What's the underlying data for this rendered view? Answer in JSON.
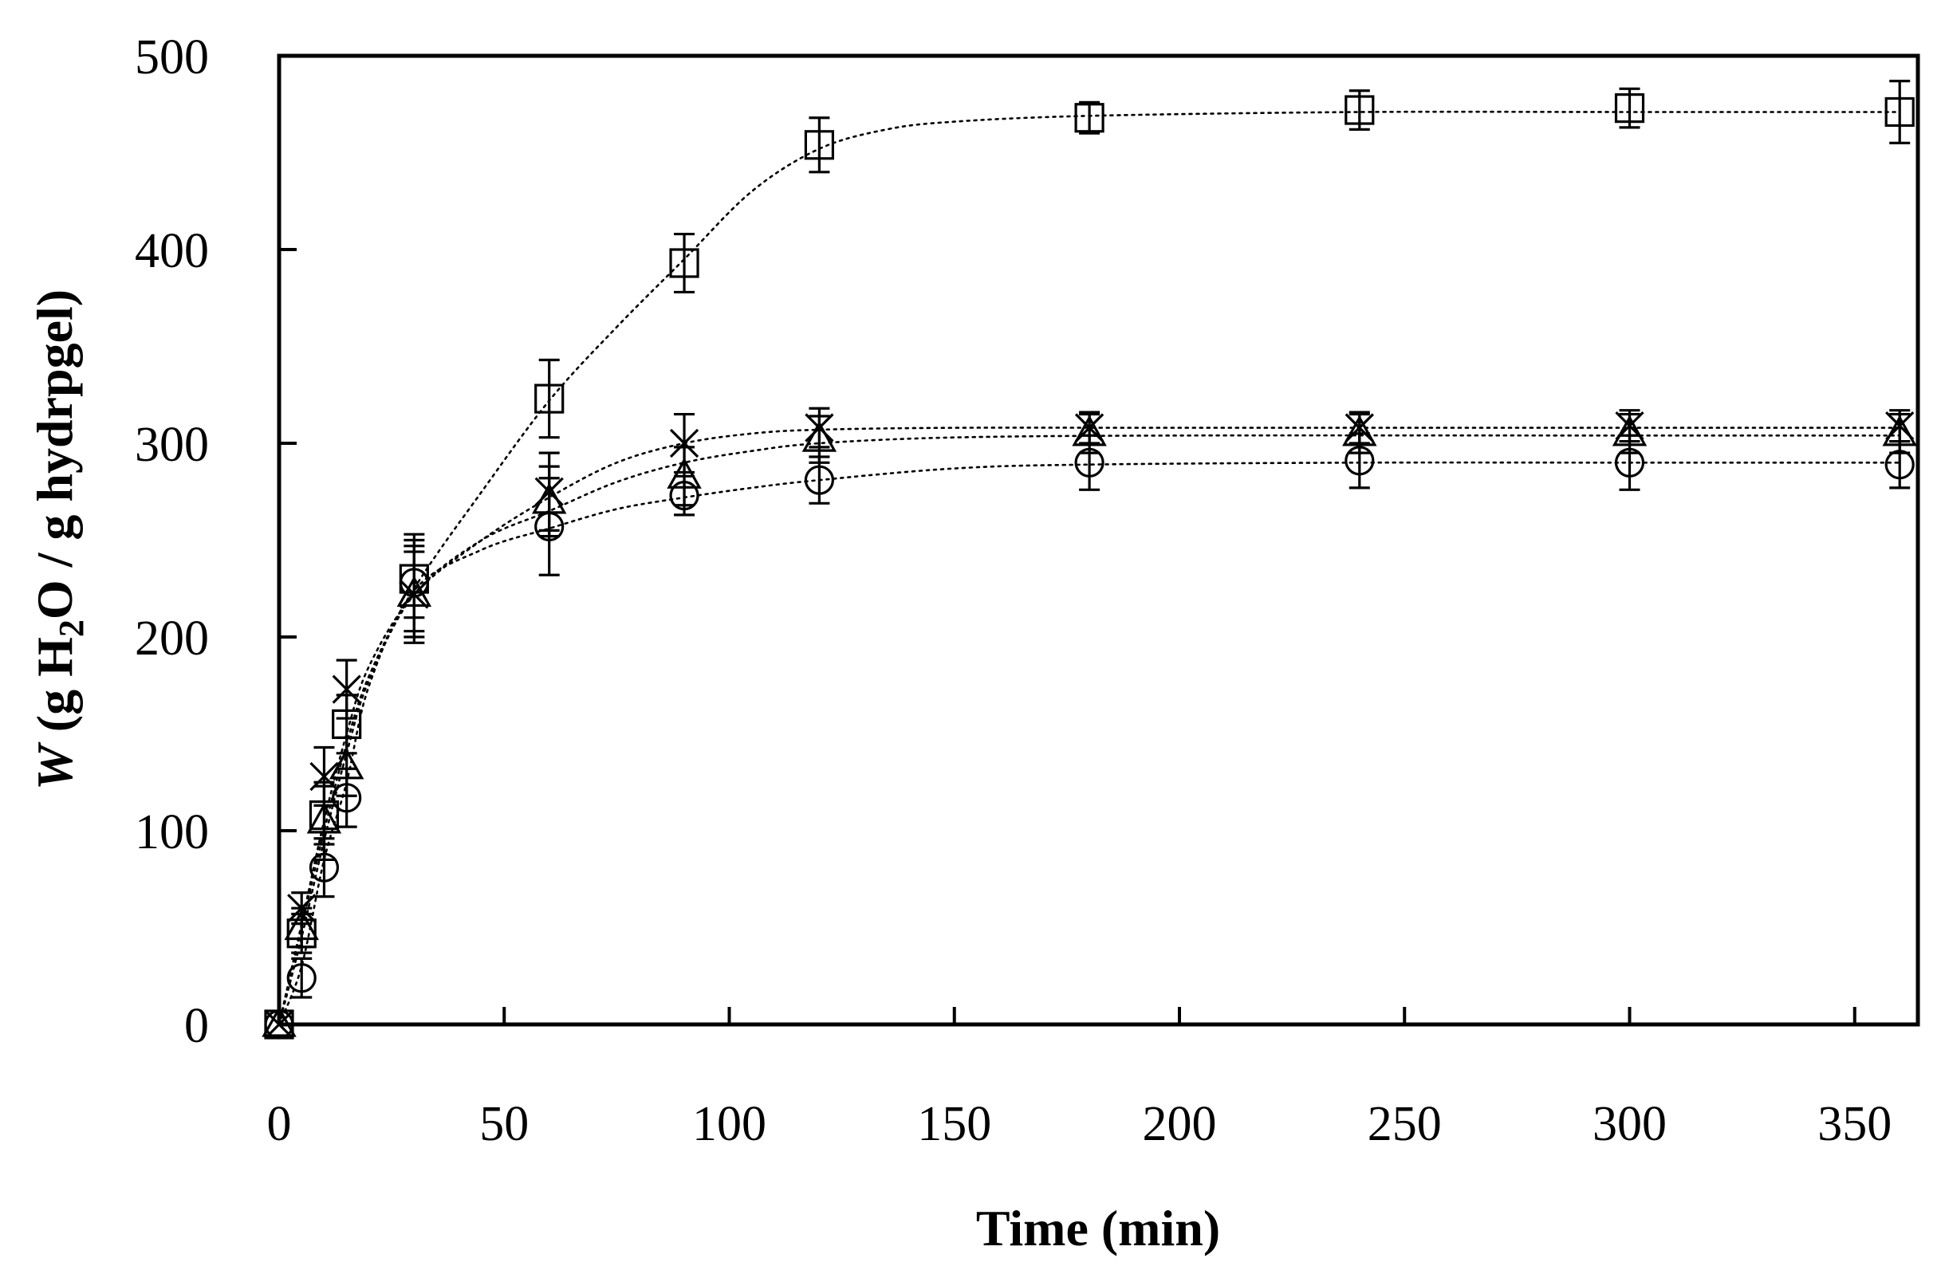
{
  "chart_data": {
    "type": "scatter",
    "title": "",
    "xlabel": "Time (min)",
    "ylabel_italic": "W",
    "ylabel_prefix": " (g H",
    "ylabel_subscript": "2",
    "ylabel_suffix": "O / g hydrpgel)",
    "xlim": [
      0,
      365
    ],
    "ylim": [
      0,
      500
    ],
    "xticks": [
      0,
      50,
      100,
      150,
      200,
      250,
      300,
      350
    ],
    "yticks": [
      0,
      100,
      200,
      300,
      400,
      500
    ],
    "grid": false,
    "legend": "none",
    "series": [
      {
        "name": "square",
        "marker": "square",
        "x": [
          0,
          5,
          10,
          15,
          30,
          60,
          90,
          120,
          180,
          240,
          300,
          360
        ],
        "y": [
          0,
          47,
          108,
          155,
          230,
          323,
          393,
          454,
          468,
          472,
          473,
          471
        ],
        "err": [
          0,
          10,
          15,
          15,
          20,
          20,
          15,
          14,
          8,
          10,
          10,
          16
        ],
        "fit": [
          [
            0,
            0
          ],
          [
            5,
            50
          ],
          [
            10,
            100
          ],
          [
            15,
            145
          ],
          [
            20,
            180
          ],
          [
            30,
            225
          ],
          [
            45,
            275
          ],
          [
            60,
            322
          ],
          [
            75,
            360
          ],
          [
            90,
            395
          ],
          [
            105,
            430
          ],
          [
            120,
            452
          ],
          [
            135,
            462
          ],
          [
            150,
            466
          ],
          [
            180,
            469
          ],
          [
            240,
            471
          ],
          [
            300,
            471
          ],
          [
            360,
            471
          ]
        ]
      },
      {
        "name": "cross",
        "marker": "cross",
        "x": [
          0,
          5,
          10,
          15,
          30,
          60,
          90,
          120,
          180,
          240,
          300,
          360
        ],
        "y": [
          0,
          60,
          128,
          173,
          222,
          275,
          300,
          308,
          308,
          308,
          309,
          309
        ],
        "err": [
          0,
          8,
          15,
          15,
          25,
          20,
          15,
          10,
          8,
          8,
          8,
          8
        ],
        "fit": [
          [
            0,
            0
          ],
          [
            5,
            52
          ],
          [
            10,
            105
          ],
          [
            15,
            150
          ],
          [
            20,
            185
          ],
          [
            30,
            222
          ],
          [
            45,
            250
          ],
          [
            60,
            272
          ],
          [
            75,
            290
          ],
          [
            90,
            300
          ],
          [
            105,
            305
          ],
          [
            120,
            307
          ],
          [
            150,
            308
          ],
          [
            200,
            308
          ],
          [
            300,
            308
          ],
          [
            360,
            308
          ]
        ]
      },
      {
        "name": "triangle",
        "marker": "triangle",
        "x": [
          0,
          5,
          10,
          15,
          30,
          60,
          90,
          120,
          180,
          240,
          300,
          360
        ],
        "y": [
          0,
          50,
          105,
          133,
          222,
          270,
          283,
          302,
          305,
          305,
          305,
          305
        ],
        "err": [
          0,
          10,
          20,
          15,
          22,
          18,
          15,
          12,
          10,
          10,
          10,
          10
        ],
        "fit": [
          [
            0,
            0
          ],
          [
            5,
            45
          ],
          [
            10,
            95
          ],
          [
            15,
            140
          ],
          [
            20,
            178
          ],
          [
            30,
            222
          ],
          [
            45,
            250
          ],
          [
            60,
            265
          ],
          [
            75,
            280
          ],
          [
            90,
            290
          ],
          [
            105,
            296
          ],
          [
            120,
            300
          ],
          [
            150,
            303
          ],
          [
            200,
            304
          ],
          [
            300,
            304
          ],
          [
            360,
            304
          ]
        ]
      },
      {
        "name": "circle",
        "marker": "circle",
        "x": [
          0,
          5,
          10,
          15,
          30,
          60,
          90,
          120,
          180,
          240,
          300,
          360
        ],
        "y": [
          0,
          24,
          81,
          117,
          228,
          257,
          273,
          281,
          290,
          291,
          290,
          289
        ],
        "err": [
          0,
          10,
          15,
          15,
          25,
          25,
          10,
          12,
          14,
          14,
          14,
          12
        ],
        "fit": [
          [
            0,
            0
          ],
          [
            5,
            30
          ],
          [
            10,
            85
          ],
          [
            15,
            125
          ],
          [
            20,
            175
          ],
          [
            30,
            224
          ],
          [
            45,
            245
          ],
          [
            60,
            256
          ],
          [
            75,
            266
          ],
          [
            90,
            272
          ],
          [
            105,
            277
          ],
          [
            120,
            281
          ],
          [
            150,
            287
          ],
          [
            180,
            289
          ],
          [
            240,
            290
          ],
          [
            300,
            290
          ],
          [
            360,
            290
          ]
        ]
      }
    ]
  }
}
